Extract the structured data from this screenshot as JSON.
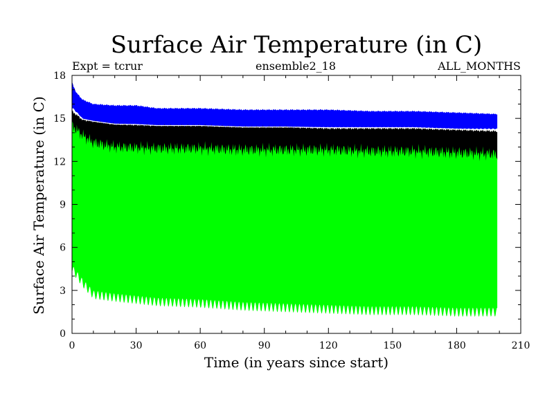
{
  "chart_data": {
    "type": "area",
    "title": "Surface Air Temperature (in C)",
    "header_left": "Expt = tcrur",
    "header_center": "ensemble2_18",
    "header_right": "ALL_MONTHS",
    "xlabel": "Time (in years since start)",
    "ylabel": "Surface Air Temperature (in C)",
    "xlim": [
      0,
      210
    ],
    "ylim": [
      0,
      18
    ],
    "xticks": [
      0,
      30,
      60,
      90,
      120,
      150,
      180,
      210
    ],
    "yticks": [
      0,
      3,
      6,
      9,
      12,
      15,
      18
    ],
    "grid": false,
    "colors": {
      "blue": "#0000ff",
      "white": "#ffffff",
      "black": "#000000",
      "green": "#00ff00"
    },
    "series": [
      {
        "color": "blue",
        "x": [
          0,
          2,
          5,
          10,
          20,
          30,
          40,
          60,
          80,
          100,
          120,
          140,
          160,
          180,
          199
        ],
        "upper": [
          17.5,
          16.8,
          16.3,
          16.0,
          15.9,
          15.9,
          15.7,
          15.7,
          15.6,
          15.6,
          15.6,
          15.5,
          15.5,
          15.4,
          15.3
        ],
        "lower": [
          15.8,
          15.5,
          15.0,
          14.8,
          14.6,
          14.6,
          14.5,
          14.5,
          14.4,
          14.4,
          14.4,
          14.4,
          14.4,
          14.3,
          14.3
        ]
      },
      {
        "color": "black",
        "x": [
          0,
          5,
          20,
          40,
          60,
          80,
          100,
          120,
          140,
          160,
          180,
          199
        ],
        "upper": [
          15.5,
          14.9,
          14.6,
          14.5,
          14.5,
          14.4,
          14.4,
          14.3,
          14.3,
          14.3,
          14.2,
          14.1
        ],
        "lower": [
          12.8,
          12.6,
          12.4,
          12.4,
          12.3,
          12.3,
          12.3,
          12.2,
          12.2,
          12.2,
          12.1,
          12.1
        ]
      },
      {
        "color": "green",
        "x": [
          0,
          5,
          10,
          20,
          40,
          60,
          80,
          100,
          120,
          140,
          160,
          180,
          199
        ],
        "upper": [
          14.5,
          13.8,
          13.3,
          13.0,
          12.9,
          12.9,
          12.8,
          12.8,
          12.8,
          12.7,
          12.7,
          12.6,
          12.5
        ],
        "lower": [
          4.8,
          3.8,
          3.0,
          2.8,
          2.5,
          2.4,
          2.2,
          2.1,
          2.0,
          1.9,
          1.9,
          1.8,
          1.8
        ]
      }
    ]
  }
}
